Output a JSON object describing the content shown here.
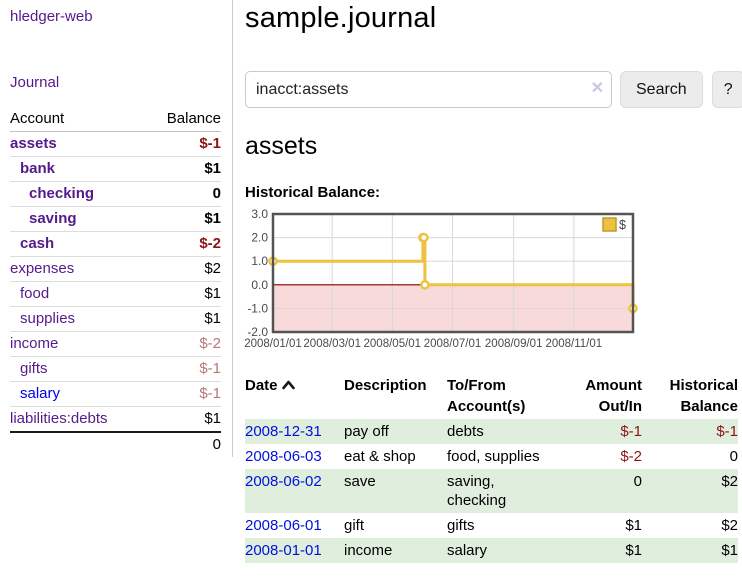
{
  "colors": {
    "visited_link_purple": "#551a8b",
    "unvisited_link_blue": "#0000ee",
    "date_link_blue": "#0011dd",
    "negative_strong": "#8e1414",
    "negative_soft": "#b87777",
    "zebra_green": "#dfeedd",
    "chart_series_gold": "#edc240",
    "chart_negative_region": "#f8dada",
    "chart_zero_line": "#8b0000"
  },
  "sidebar": {
    "app_title": "hledger-web",
    "journal_link": "Journal",
    "accounts_table": {
      "headers": {
        "account": "Account",
        "balance": "Balance"
      },
      "rows": [
        {
          "account": "assets",
          "indent": 0,
          "bold": true,
          "balance": "$-1",
          "balance_style": "neg-strong"
        },
        {
          "account": "bank",
          "indent": 1,
          "bold": true,
          "balance": "$1",
          "balance_style": ""
        },
        {
          "account": "checking",
          "indent": 2,
          "bold": true,
          "balance": "0",
          "balance_style": ""
        },
        {
          "account": "saving",
          "indent": 2,
          "bold": true,
          "balance": "$1",
          "balance_style": ""
        },
        {
          "account": "cash",
          "indent": 1,
          "bold": true,
          "balance": "$-2",
          "balance_style": "neg-strong"
        },
        {
          "account": "expenses",
          "indent": 0,
          "bold": false,
          "balance": "$2",
          "balance_style": ""
        },
        {
          "account": "food",
          "indent": 1,
          "bold": false,
          "balance": "$1",
          "balance_style": ""
        },
        {
          "account": "supplies",
          "indent": 1,
          "bold": false,
          "balance": "$1",
          "balance_style": ""
        },
        {
          "account": "income",
          "indent": 0,
          "bold": false,
          "balance": "$-2",
          "balance_style": "neg-soft"
        },
        {
          "account": "gifts",
          "indent": 1,
          "bold": false,
          "balance": "$-1",
          "balance_style": "neg-soft"
        },
        {
          "account": "salary",
          "indent": 1,
          "bold": false,
          "balance": "$-1",
          "balance_style": "neg-soft",
          "link_style": "unvisited"
        },
        {
          "account": "liabilities:debts",
          "indent": 0,
          "bold": false,
          "balance": "$1",
          "balance_style": ""
        }
      ],
      "total": "0"
    }
  },
  "main": {
    "title": "sample.journal",
    "search": {
      "value": "inacct:assets",
      "clear_icon": "✕",
      "button_label": "Search",
      "help_label": "?"
    },
    "account_heading": "assets",
    "chart_label": "Historical Balance:",
    "chart_data": {
      "type": "line",
      "title": "Historical Balance:",
      "series": [
        {
          "name": "$",
          "color": "#edc240",
          "step": true,
          "points": [
            {
              "x": "2008-01-01",
              "y": 1
            },
            {
              "x": "2008-06-01",
              "y": 2
            },
            {
              "x": "2008-06-02",
              "y": 2
            },
            {
              "x": "2008-06-03",
              "y": 0
            },
            {
              "x": "2008-12-31",
              "y": -1
            }
          ]
        }
      ],
      "ylim": [
        -2.0,
        3.0
      ],
      "yticks": [
        "3.0",
        "2.0",
        "1.0",
        "0.0",
        "-1.0",
        "-2.0"
      ],
      "xticks": [
        "2008/01/01",
        "2008/03/01",
        "2008/05/01",
        "2008/07/01",
        "2008/09/01",
        "2008/11/01"
      ],
      "x_range": [
        "2008-01-01",
        "2008-12-31"
      ],
      "legend": {
        "label": "$",
        "position": "top-right"
      },
      "grid": true,
      "negative_region": true
    },
    "register_table": {
      "headers": {
        "date": "Date",
        "description": "Description",
        "accounts": "To/From Account(s)",
        "amount": "Amount Out/In",
        "balance": "Historical Balance"
      },
      "rows": [
        {
          "date": "2008-12-31",
          "description": "pay off",
          "accounts": "debts",
          "amount": "$-1",
          "amount_neg": true,
          "balance": "$-1",
          "balance_neg": true
        },
        {
          "date": "2008-06-03",
          "description": "eat & shop",
          "accounts": "food, supplies",
          "amount": "$-2",
          "amount_neg": true,
          "balance": "0",
          "balance_neg": false
        },
        {
          "date": "2008-06-02",
          "description": "save",
          "accounts": "saving, checking",
          "amount": "0",
          "amount_neg": false,
          "balance": "$2",
          "balance_neg": false
        },
        {
          "date": "2008-06-01",
          "description": "gift",
          "accounts": "gifts",
          "amount": "$1",
          "amount_neg": false,
          "balance": "$2",
          "balance_neg": false
        },
        {
          "date": "2008-01-01",
          "description": "income",
          "accounts": "salary",
          "amount": "$1",
          "amount_neg": false,
          "balance": "$1",
          "balance_neg": false
        }
      ]
    }
  }
}
